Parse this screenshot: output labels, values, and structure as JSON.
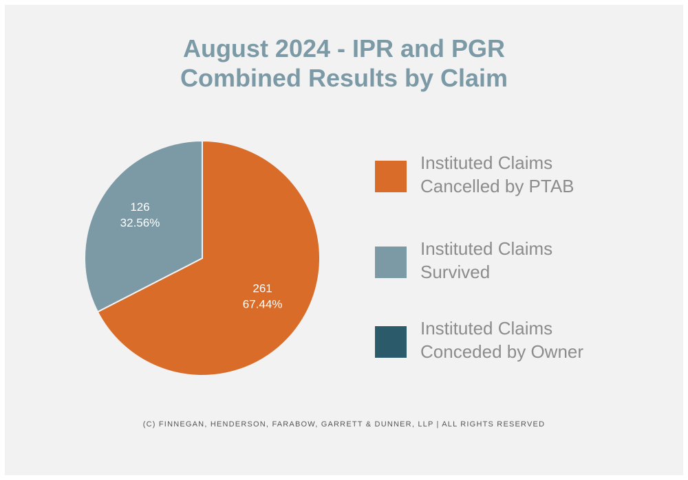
{
  "title_line1": "August 2024 - IPR and PGR",
  "title_line2": "Combined Results by Claim",
  "chart_data": {
    "type": "pie",
    "title": "August 2024 - IPR and PGR Combined Results by Claim",
    "series": [
      {
        "name": "Instituted Claims Cancelled by PTAB",
        "value": 261,
        "percent": "67.44%",
        "color": "#d96c28"
      },
      {
        "name": "Instituted Claims Survived",
        "value": 126,
        "percent": "32.56%",
        "color": "#7b9aa6"
      },
      {
        "name": "Instituted Claims Conceded by Owner",
        "value": 0,
        "percent": "0%",
        "color": "#2b5a6a"
      }
    ],
    "data_labels": [
      {
        "value": "261",
        "percent": "67.44%"
      },
      {
        "value": "126",
        "percent": "32.56%"
      }
    ],
    "legend": [
      {
        "line1": "Instituted Claims",
        "line2": "Cancelled by PTAB",
        "color": "#d96c28"
      },
      {
        "line1": "Instituted Claims",
        "line2": "Survived",
        "color": "#7b9aa6"
      },
      {
        "line1": "Instituted Claims",
        "line2": "Conceded by Owner",
        "color": "#2b5a6a"
      }
    ],
    "legend_position": "right"
  },
  "footer": "(C) FINNEGAN, HENDERSON, FARABOW, GARRETT & DUNNER, LLP | ALL RIGHTS RESERVED"
}
